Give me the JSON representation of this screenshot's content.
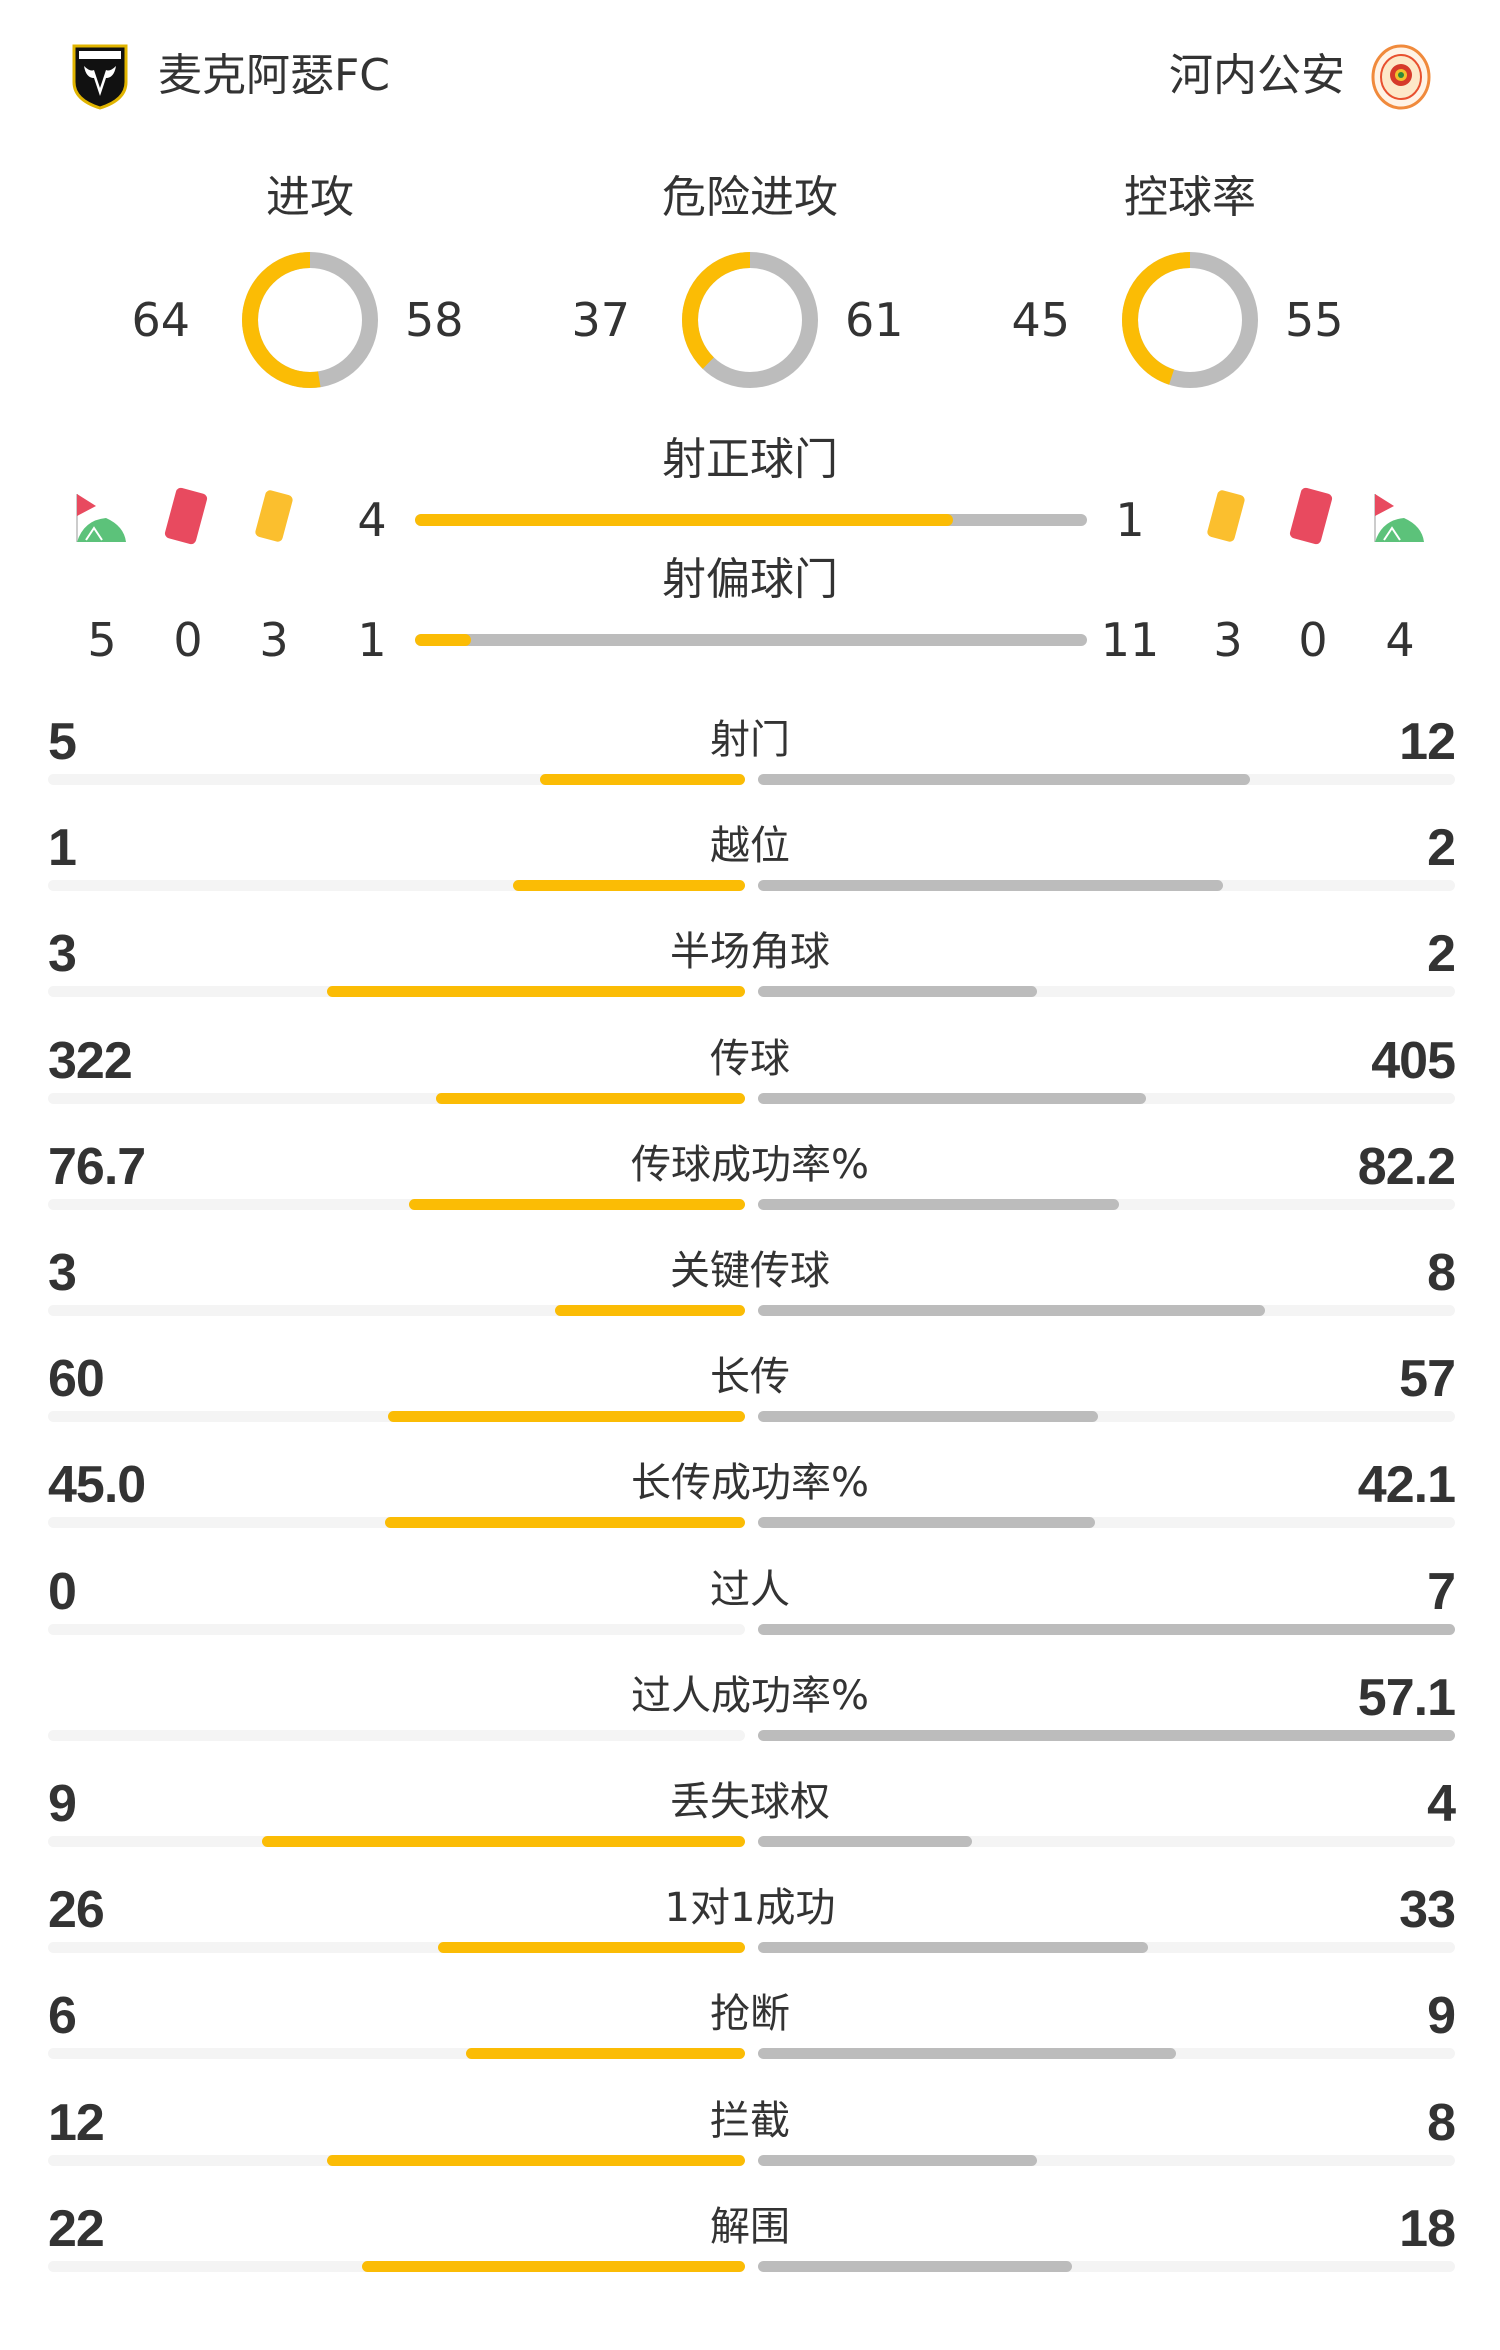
{
  "home": {
    "name": "麦克阿瑟FC",
    "logo_text": "MACARTHUR FC"
  },
  "away": {
    "name": "河内公安",
    "logo_text": "BỘ CÔNG AN · CÔNG AN HÀ NỘI FC"
  },
  "colors": {
    "home": "#fbbc05",
    "away": "#bcbcbc",
    "track": "#f4f4f4",
    "red_card": "#e84a5f",
    "yellow_card": "#fbbf2e",
    "corner_green": "#5cc27a"
  },
  "donuts": [
    {
      "label": "进攻",
      "home": "64",
      "away": "58"
    },
    {
      "label": "危险进攻",
      "home": "37",
      "away": "61"
    },
    {
      "label": "控球率",
      "home": "45",
      "away": "55"
    }
  ],
  "shots_on_target": {
    "label": "射正球门",
    "home": "4",
    "away": "1"
  },
  "shots_off_target": {
    "label": "射偏球门",
    "home": "1",
    "away": "11"
  },
  "home_counts": {
    "corners": "5",
    "red_cards": "0",
    "yellow_cards": "3"
  },
  "away_counts": {
    "yellow_cards": "3",
    "red_cards": "0",
    "corners": "4"
  },
  "icons": [
    "corner-flag-icon",
    "red-card-icon",
    "yellow-card-icon"
  ],
  "stats": [
    {
      "label": "射门",
      "home": "5",
      "away": "12"
    },
    {
      "label": "越位",
      "home": "1",
      "away": "2"
    },
    {
      "label": "半场角球",
      "home": "3",
      "away": "2"
    },
    {
      "label": "传球",
      "home": "322",
      "away": "405"
    },
    {
      "label": "传球成功率%",
      "home": "76.7",
      "away": "82.2"
    },
    {
      "label": "关键传球",
      "home": "3",
      "away": "8"
    },
    {
      "label": "长传",
      "home": "60",
      "away": "57"
    },
    {
      "label": "长传成功率%",
      "home": "45.0",
      "away": "42.1"
    },
    {
      "label": "过人",
      "home": "0",
      "away": "7"
    },
    {
      "label": "过人成功率%",
      "home": "",
      "away": "57.1"
    },
    {
      "label": "丢失球权",
      "home": "9",
      "away": "4"
    },
    {
      "label": "1对1成功",
      "home": "26",
      "away": "33"
    },
    {
      "label": "抢断",
      "home": "6",
      "away": "9"
    },
    {
      "label": "拦截",
      "home": "12",
      "away": "8"
    },
    {
      "label": "解围",
      "home": "22",
      "away": "18"
    }
  ]
}
